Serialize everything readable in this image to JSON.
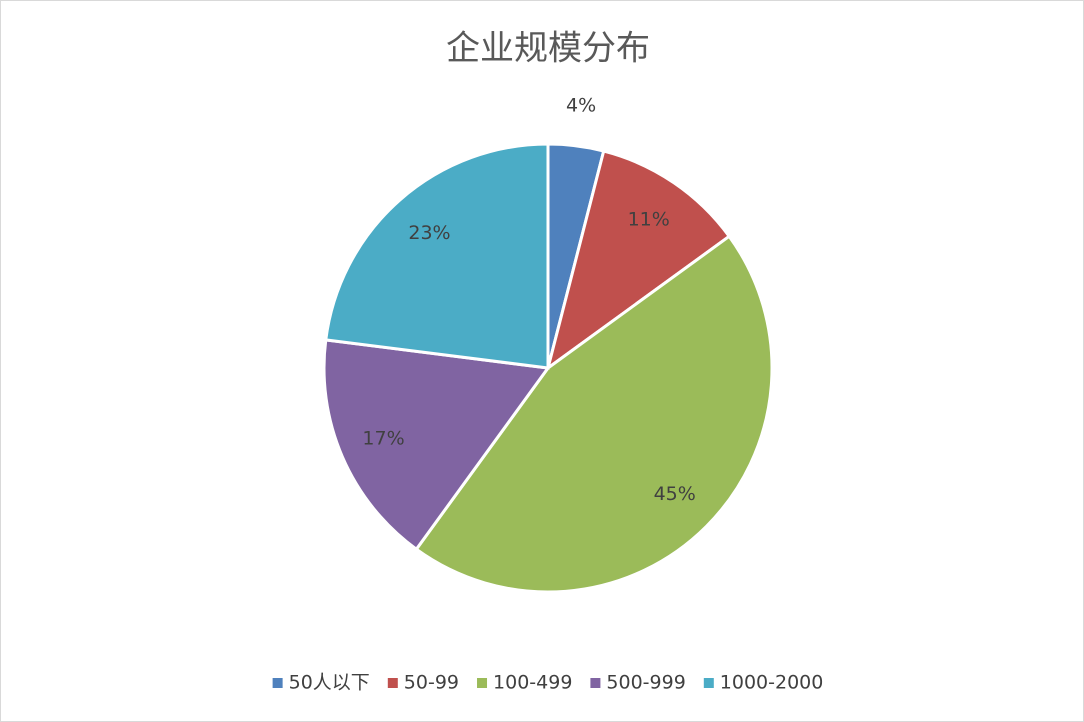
{
  "chart_data": {
    "type": "pie",
    "title": "企业规模分布",
    "categories": [
      "50人以下",
      "50-99",
      "100-499",
      "500-999",
      "1000-2000"
    ],
    "values": [
      4,
      11,
      45,
      17,
      23
    ],
    "value_labels": [
      "4%",
      "11%",
      "45%",
      "17%",
      "23%"
    ],
    "colors": [
      "#4f81bd",
      "#c0504d",
      "#9bbb59",
      "#8064a2",
      "#4bacc6"
    ],
    "legend": "bottom"
  }
}
